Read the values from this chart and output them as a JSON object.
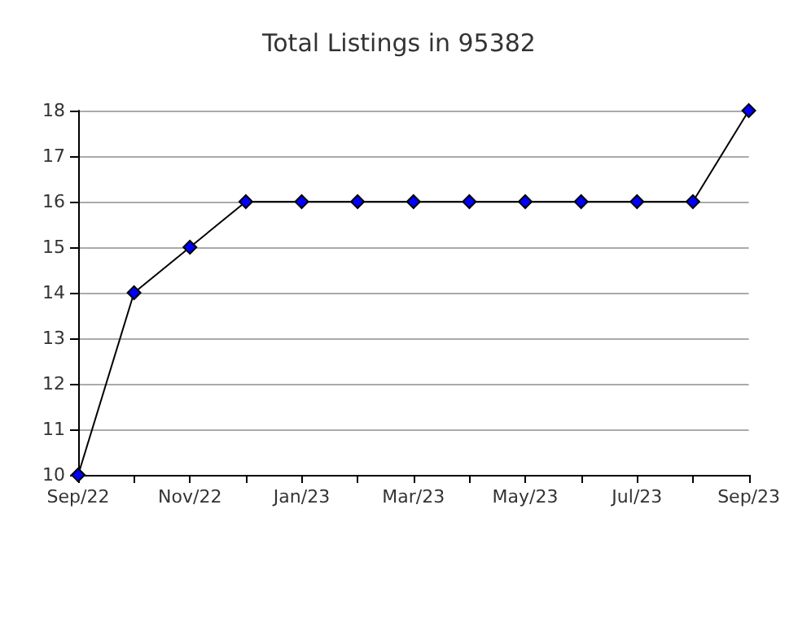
{
  "chart_data": {
    "type": "line",
    "title": "Total Listings in 95382",
    "categories": [
      "Sep/22",
      null,
      "Nov/22",
      null,
      "Jan/23",
      null,
      "Mar/23",
      null,
      "May/23",
      null,
      "Jul/23",
      null,
      "Sep/23"
    ],
    "series": [
      {
        "color": "#0000ff",
        "values": [
          10,
          14,
          15,
          16,
          16,
          16,
          16,
          16,
          16,
          16,
          16,
          16,
          18
        ]
      }
    ],
    "ylim": [
      10,
      18
    ],
    "yticks": [
      10,
      11,
      12,
      13,
      14,
      15,
      16,
      17,
      18
    ],
    "grid": "y",
    "marker": "diamond",
    "line_style": "solid"
  }
}
